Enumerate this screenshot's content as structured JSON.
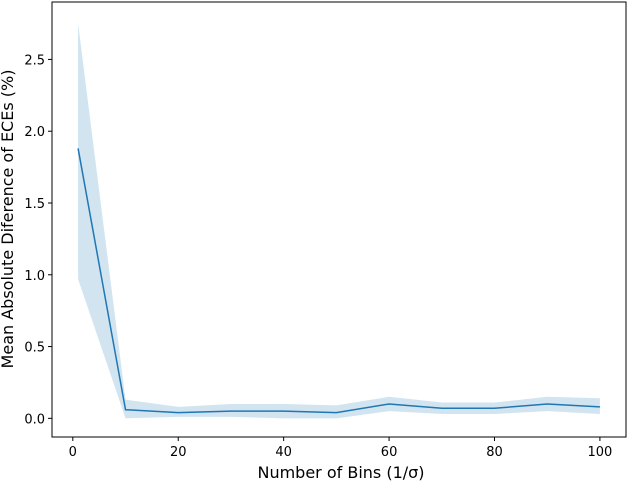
{
  "chart_data": {
    "type": "line",
    "xlabel": "Number of Bins (1/σ)",
    "ylabel": "Mean Absolute Diference of ECEs (%)",
    "x": [
      1,
      10,
      20,
      30,
      40,
      50,
      60,
      70,
      80,
      90,
      100
    ],
    "series": [
      {
        "color": "#1f77b4",
        "values": [
          1.88,
          0.06,
          0.04,
          0.05,
          0.05,
          0.04,
          0.1,
          0.07,
          0.07,
          0.1,
          0.08
        ],
        "upper": [
          2.75,
          0.13,
          0.08,
          0.1,
          0.1,
          0.09,
          0.15,
          0.11,
          0.11,
          0.15,
          0.14
        ],
        "lower": [
          0.97,
          0.0,
          0.01,
          0.01,
          0.0,
          0.0,
          0.05,
          0.03,
          0.03,
          0.05,
          0.03
        ]
      }
    ],
    "xlim": [
      -3.95,
      104.95
    ],
    "ylim": [
      -0.13,
      2.9
    ],
    "xticks": [
      0,
      20,
      40,
      60,
      80,
      100
    ],
    "yticks": [
      {
        "value": 0,
        "label": "0.0"
      },
      0.5,
      {
        "value": 1,
        "label": "1.0"
      },
      1.5,
      {
        "value": 2,
        "label": "2.0"
      },
      2.5
    ]
  }
}
